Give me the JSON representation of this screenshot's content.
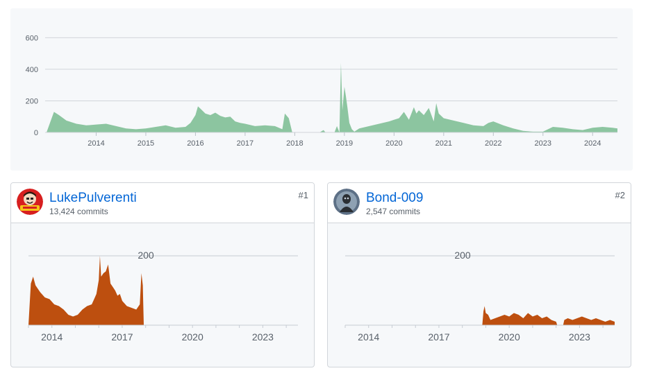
{
  "chart_data": [
    {
      "type": "area",
      "ylim": [
        0,
        650
      ],
      "yticks": [
        0,
        200,
        400,
        600
      ],
      "xlim": [
        2013.0,
        2024.5
      ],
      "xtick_labels": [
        "2014",
        "2015",
        "2016",
        "2017",
        "2018",
        "2019",
        "2020",
        "2021",
        "2022",
        "2023",
        "2024"
      ],
      "color": "#8cc5a0",
      "series": [
        {
          "x": [
            2013.0,
            2013.08,
            2013.15,
            2013.25,
            2013.4,
            2013.6,
            2013.8,
            2014.0,
            2014.2,
            2014.4,
            2014.6,
            2014.8,
            2015.0,
            2015.2,
            2015.4,
            2015.6,
            2015.8,
            2015.9,
            2016.0,
            2016.05,
            2016.1,
            2016.2,
            2016.3,
            2016.4,
            2016.5,
            2016.6,
            2016.7,
            2016.8,
            2016.9,
            2017.0,
            2017.2,
            2017.4,
            2017.6,
            2017.75,
            2017.8,
            2017.88,
            2017.95,
            2018.1,
            2018.5,
            2018.58,
            2018.62,
            2018.8,
            2018.85,
            2018.9,
            2018.93,
            2018.96,
            2019.0,
            2019.03,
            2019.06,
            2019.1,
            2019.15,
            2019.2,
            2019.3,
            2019.5,
            2019.7,
            2019.9,
            2020.0,
            2020.1,
            2020.2,
            2020.3,
            2020.4,
            2020.45,
            2020.5,
            2020.6,
            2020.7,
            2020.8,
            2020.85,
            2020.9,
            2021.0,
            2021.2,
            2021.4,
            2021.6,
            2021.8,
            2021.9,
            2022.0,
            2022.2,
            2022.4,
            2022.6,
            2022.8,
            2023.0,
            2023.2,
            2023.4,
            2023.6,
            2023.8,
            2024.0,
            2024.2,
            2024.4,
            2024.5
          ],
          "values": [
            0,
            70,
            130,
            110,
            75,
            55,
            45,
            50,
            55,
            40,
            25,
            20,
            25,
            35,
            45,
            30,
            35,
            60,
            110,
            165,
            150,
            120,
            110,
            125,
            105,
            95,
            100,
            70,
            60,
            55,
            40,
            45,
            40,
            20,
            120,
            90,
            0,
            0,
            0,
            15,
            0,
            0,
            40,
            0,
            440,
            140,
            290,
            230,
            160,
            60,
            20,
            5,
            25,
            40,
            55,
            70,
            80,
            90,
            130,
            80,
            160,
            120,
            140,
            110,
            155,
            70,
            185,
            120,
            90,
            75,
            60,
            45,
            40,
            60,
            70,
            45,
            25,
            10,
            5,
            5,
            35,
            30,
            20,
            15,
            30,
            35,
            30,
            25
          ]
        }
      ]
    },
    {
      "type": "area",
      "ylim": [
        0,
        250
      ],
      "yticks": [
        200
      ],
      "xlim": [
        2013.0,
        2024.5
      ],
      "xtick_labels": [
        "2014",
        "2017",
        "2020",
        "2023"
      ],
      "color": "#bd4f0f",
      "series": [
        {
          "x": [
            2013.0,
            2013.1,
            2013.2,
            2013.3,
            2013.5,
            2013.7,
            2013.9,
            2014.1,
            2014.3,
            2014.5,
            2014.7,
            2014.9,
            2015.1,
            2015.3,
            2015.5,
            2015.7,
            2015.8,
            2015.9,
            2016.0,
            2016.05,
            2016.1,
            2016.2,
            2016.3,
            2016.4,
            2016.5,
            2016.6,
            2016.7,
            2016.8,
            2016.9,
            2017.0,
            2017.2,
            2017.4,
            2017.6,
            2017.75,
            2017.82,
            2017.88,
            2017.92
          ],
          "values": [
            0,
            120,
            140,
            115,
            95,
            80,
            75,
            60,
            55,
            45,
            30,
            25,
            30,
            45,
            55,
            60,
            75,
            90,
            130,
            200,
            140,
            150,
            155,
            175,
            120,
            110,
            100,
            85,
            90,
            70,
            55,
            50,
            45,
            60,
            150,
            115,
            0
          ]
        }
      ]
    },
    {
      "type": "area",
      "ylim": [
        0,
        250
      ],
      "yticks": [
        200
      ],
      "xlim": [
        2013.0,
        2024.5
      ],
      "xtick_labels": [
        "2014",
        "2017",
        "2020",
        "2023"
      ],
      "color": "#bd4f0f",
      "series": [
        {
          "x": [
            2018.85,
            2018.9,
            2018.95,
            2019.0,
            2019.1,
            2019.2,
            2019.4,
            2019.6,
            2019.8,
            2020.0,
            2020.2,
            2020.4,
            2020.6,
            2020.8,
            2021.0,
            2021.2,
            2021.4,
            2021.6,
            2021.8,
            2022.0,
            2022.05,
            2022.3,
            2022.35,
            2022.5,
            2022.7,
            2022.9,
            2023.1,
            2023.3,
            2023.5,
            2023.7,
            2023.9,
            2024.1,
            2024.3,
            2024.5
          ],
          "values": [
            0,
            40,
            55,
            35,
            30,
            15,
            20,
            25,
            30,
            25,
            35,
            30,
            20,
            35,
            25,
            30,
            20,
            25,
            15,
            10,
            0,
            0,
            15,
            20,
            15,
            20,
            25,
            20,
            15,
            20,
            15,
            10,
            15,
            10
          ]
        }
      ]
    }
  ],
  "contributors": [
    {
      "name": "LukePulverenti",
      "commits": "13,424 commits",
      "rank": "#1"
    },
    {
      "name": "Bond-009",
      "commits": "2,547 commits",
      "rank": "#2"
    }
  ]
}
